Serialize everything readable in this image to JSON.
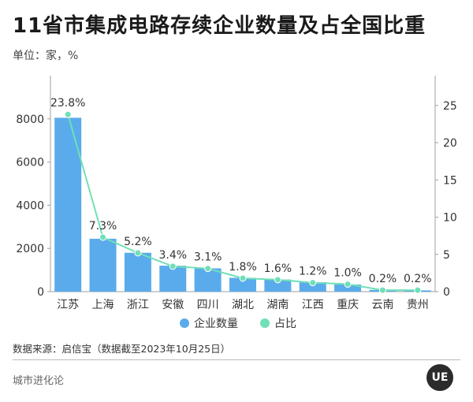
{
  "header": {
    "title": "11省市集成电路存续企业数量及占全国比重",
    "unit": "单位：家，%"
  },
  "footer": {
    "source": "数据来源：启信宝（数据截至2023年10月25日）",
    "brand": "城市进化论",
    "logo": "UE"
  },
  "colors": {
    "bar": "#5aabeb",
    "line": "#6fe0b7",
    "axis": "#9aa0a6",
    "text": "#333333"
  },
  "chart_data": {
    "type": "bar",
    "title": "11省市集成电路存续企业数量及占全国比重",
    "categories": [
      "江苏",
      "上海",
      "浙江",
      "安徽",
      "四川",
      "湖北",
      "湖南",
      "江西",
      "重庆",
      "云南",
      "贵州"
    ],
    "series": [
      {
        "name": "企业数量",
        "type": "bar",
        "axis": "left",
        "values": [
          8050,
          2450,
          1800,
          1200,
          1080,
          640,
          560,
          440,
          330,
          80,
          60
        ]
      },
      {
        "name": "占比",
        "type": "line",
        "axis": "right",
        "values": [
          23.8,
          7.3,
          5.2,
          3.4,
          3.1,
          1.8,
          1.6,
          1.2,
          1.0,
          0.2,
          0.2
        ],
        "labels": [
          "23.8%",
          "7.3%",
          "5.2%",
          "3.4%",
          "3.1%",
          "1.8%",
          "1.6%",
          "1.2%",
          "1.0%",
          "0.2%",
          "0.2%"
        ]
      }
    ],
    "y_left": {
      "ticks": [
        "0",
        "2000",
        "4000",
        "6000",
        "8000"
      ],
      "ylim": [
        0,
        10000
      ]
    },
    "y_right": {
      "ticks": [
        "0",
        "5",
        "10",
        "15",
        "20",
        "25"
      ],
      "ylim": [
        0,
        29
      ]
    },
    "legend": {
      "position": "bottom",
      "items": [
        "企业数量",
        "占比"
      ]
    }
  }
}
